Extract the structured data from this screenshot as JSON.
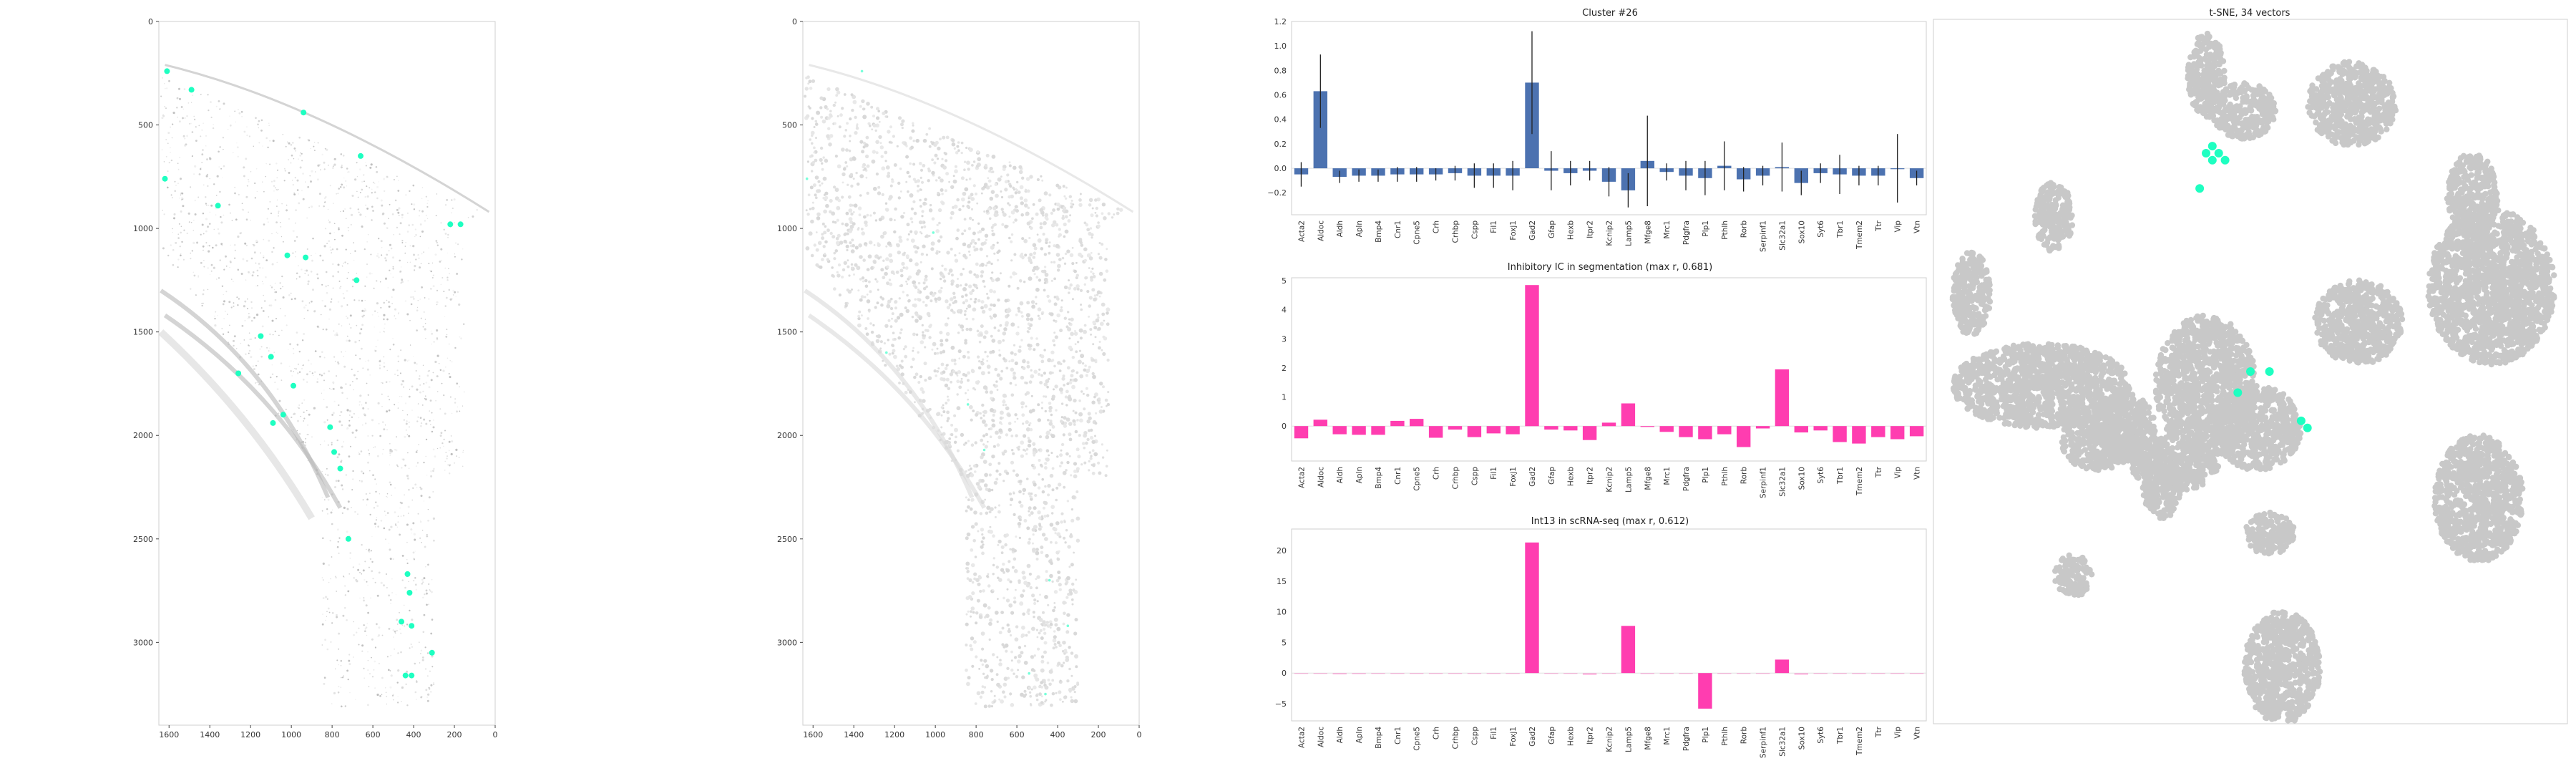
{
  "genes": [
    "Acta2",
    "Aldoc",
    "Aldh",
    "Apln",
    "Bmp4",
    "Cnr1",
    "Cpne5",
    "Crh",
    "Crhbp",
    "Cspp",
    "Fil1",
    "Foxj1",
    "Gad2",
    "Gfap",
    "Hexb",
    "Itpr2",
    "Kcnip2",
    "Lamp5",
    "Mfge8",
    "Mrc1",
    "Pdgfra",
    "Plp1",
    "Pthlh",
    "Rorb",
    "Serpinf1",
    "Slc32a1",
    "Sox10",
    "Syt6",
    "Tbr1",
    "Tmem2",
    "Ttr",
    "Vip",
    "Vtn"
  ],
  "accent_color": "#1effc1",
  "bar_color_blue": "#4c72b0",
  "bar_color_pink": "#ff3db0",
  "point_gray": "#c8c8c8",
  "chart_data": [
    {
      "id": "tissue_spots",
      "type": "scatter",
      "xlim": [
        1650,
        0
      ],
      "ylim": [
        3400,
        0
      ],
      "x_ticks": [
        1600,
        1400,
        1200,
        1000,
        800,
        600,
        400,
        200,
        0
      ],
      "y_ticks": [
        0,
        500,
        1000,
        1500,
        2000,
        2500,
        3000
      ],
      "x_tick_labels": [
        "1600",
        "1400",
        "1200",
        "1000",
        "800",
        "600",
        "400",
        "200",
        "0"
      ],
      "y_tick_labels": [
        "0",
        "500",
        "1000",
        "1500",
        "2000",
        "2500",
        "3000"
      ],
      "points": [
        [
          1610,
          240
        ],
        [
          1490,
          330
        ],
        [
          1620,
          760
        ],
        [
          1360,
          890
        ],
        [
          940,
          440
        ],
        [
          660,
          650
        ],
        [
          1020,
          1130
        ],
        [
          930,
          1140
        ],
        [
          680,
          1250
        ],
        [
          1150,
          1520
        ],
        [
          1100,
          1620
        ],
        [
          1260,
          1700
        ],
        [
          990,
          1760
        ],
        [
          1040,
          1900
        ],
        [
          1090,
          1940
        ],
        [
          810,
          1960
        ],
        [
          790,
          2080
        ],
        [
          760,
          2160
        ],
        [
          720,
          2500
        ],
        [
          430,
          2670
        ],
        [
          420,
          2760
        ],
        [
          460,
          2900
        ],
        [
          410,
          2920
        ],
        [
          310,
          3050
        ],
        [
          440,
          3160
        ],
        [
          410,
          3160
        ],
        [
          220,
          980
        ],
        [
          170,
          980
        ]
      ]
    },
    {
      "id": "tissue_segmentation",
      "type": "scatter",
      "xlim": [
        1650,
        0
      ],
      "ylim": [
        3400,
        0
      ],
      "x_ticks": [
        1600,
        1400,
        1200,
        1000,
        800,
        600,
        400,
        200,
        0
      ],
      "y_ticks": [
        0,
        500,
        1000,
        1500,
        2000,
        2500,
        3000
      ],
      "x_tick_labels": [
        "1600",
        "1400",
        "1200",
        "1000",
        "800",
        "600",
        "400",
        "200",
        "0"
      ],
      "y_tick_labels": [
        "0",
        "500",
        "1000",
        "1500",
        "2000",
        "2500",
        "3000"
      ],
      "points": [
        [
          1360,
          240
        ],
        [
          1630,
          760
        ],
        [
          1010,
          1020
        ],
        [
          1240,
          1600
        ],
        [
          840,
          1850
        ],
        [
          760,
          2070
        ],
        [
          440,
          2700
        ],
        [
          350,
          2920
        ],
        [
          540,
          3150
        ],
        [
          460,
          3250
        ]
      ]
    },
    {
      "id": "cluster26",
      "type": "bar",
      "title": "Cluster #26",
      "categories": [
        "Acta2",
        "Aldoc",
        "Aldh",
        "Apln",
        "Bmp4",
        "Cnr1",
        "Cpne5",
        "Crh",
        "Crhbp",
        "Cspp",
        "Fil1",
        "Foxj1",
        "Gad2",
        "Gfap",
        "Hexb",
        "Itpr2",
        "Kcnip2",
        "Lamp5",
        "Mfge8",
        "Mrc1",
        "Pdgfra",
        "Plp1",
        "Pthlh",
        "Rorb",
        "Serpinf1",
        "Slc32a1",
        "Sox10",
        "Syt6",
        "Tbr1",
        "Tmem2",
        "Ttr",
        "Vip",
        "Vtn"
      ],
      "values": [
        -0.05,
        0.63,
        -0.07,
        -0.06,
        -0.06,
        -0.05,
        -0.05,
        -0.05,
        -0.04,
        -0.06,
        -0.06,
        -0.06,
        0.7,
        -0.02,
        -0.04,
        -0.02,
        -0.11,
        -0.18,
        0.06,
        -0.03,
        -0.06,
        -0.08,
        0.02,
        -0.09,
        -0.06,
        0.01,
        -0.12,
        -0.04,
        -0.05,
        -0.06,
        -0.06,
        0.0,
        -0.08
      ],
      "errors": [
        0.1,
        0.3,
        0.05,
        0.05,
        0.05,
        0.06,
        0.06,
        0.05,
        0.06,
        0.1,
        0.1,
        0.12,
        0.42,
        0.16,
        0.1,
        0.08,
        0.12,
        0.14,
        0.37,
        0.07,
        0.12,
        0.14,
        0.2,
        0.1,
        0.08,
        0.2,
        0.1,
        0.08,
        0.16,
        0.08,
        0.08,
        0.28,
        0.06
      ],
      "ylim": [
        -0.38,
        1.2
      ],
      "y_ticks": [
        -0.2,
        0.0,
        0.2,
        0.4,
        0.6,
        0.8,
        1.0,
        1.2
      ],
      "y_tick_labels": [
        "−0.2",
        "0.0",
        "0.2",
        "0.4",
        "0.6",
        "0.8",
        "1.0",
        "1.2"
      ]
    },
    {
      "id": "inhibitory",
      "type": "bar",
      "title": "Inhibitory IC in segmentation (max r, 0.681)",
      "categories": [
        "Acta2",
        "Aldoc",
        "Aldh",
        "Apln",
        "Bmp4",
        "Cnr1",
        "Cpne5",
        "Crh",
        "Crhbp",
        "Cspp",
        "Fil1",
        "Foxj1",
        "Gad2",
        "Gfap",
        "Hexb",
        "Itpr2",
        "Kcnip2",
        "Lamp5",
        "Mfge8",
        "Mrc1",
        "Pdgfra",
        "Plp1",
        "Pthlh",
        "Rorb",
        "Serpinf1",
        "Slc32a1",
        "Sox10",
        "Syt6",
        "Tbr1",
        "Tmem2",
        "Ttr",
        "Vip",
        "Vtn"
      ],
      "values": [
        -0.42,
        0.22,
        -0.28,
        -0.3,
        -0.3,
        0.18,
        0.25,
        -0.4,
        -0.12,
        -0.38,
        -0.25,
        -0.28,
        4.85,
        -0.12,
        -0.15,
        -0.48,
        0.12,
        0.78,
        -0.02,
        -0.2,
        -0.38,
        -0.45,
        -0.28,
        -0.72,
        -0.08,
        1.95,
        -0.22,
        -0.15,
        -0.55,
        -0.6,
        -0.38,
        -0.45,
        -0.35
      ],
      "ylim": [
        -1.2,
        5.1
      ],
      "y_ticks": [
        0,
        1,
        2,
        3,
        4,
        5
      ],
      "y_tick_labels": [
        "0",
        "1",
        "2",
        "3",
        "4",
        "5"
      ]
    },
    {
      "id": "int13",
      "type": "bar",
      "title": "Int13 in scRNA-seq (max r, 0.612)",
      "categories": [
        "Acta2",
        "Aldoc",
        "Aldh",
        "Apln",
        "Bmp4",
        "Cnr1",
        "Cpne5",
        "Crh",
        "Crhbp",
        "Cspp",
        "Fil1",
        "Foxj1",
        "Gad2",
        "Gfap",
        "Hexb",
        "Itpr2",
        "Kcnip2",
        "Lamp5",
        "Mfge8",
        "Mrc1",
        "Pdgfra",
        "Plp1",
        "Pthlh",
        "Rorb",
        "Serpinf1",
        "Slc32a1",
        "Sox10",
        "Syt6",
        "Tbr1",
        "Tmem2",
        "Ttr",
        "Vip",
        "Vtn"
      ],
      "values": [
        0.0,
        -0.08,
        -0.22,
        -0.18,
        -0.1,
        0.0,
        0.0,
        0.0,
        0.0,
        0.0,
        -0.12,
        -0.1,
        21.3,
        0.0,
        -0.1,
        -0.3,
        0.0,
        7.7,
        -0.15,
        0.0,
        -0.1,
        -5.8,
        0.0,
        -0.12,
        0.0,
        2.2,
        -0.28,
        0.0,
        -0.12,
        -0.15,
        0.0,
        -0.1,
        -0.1
      ],
      "ylim": [
        -7.8,
        23.5
      ],
      "y_ticks": [
        -5,
        0,
        5,
        10,
        15,
        20
      ],
      "y_tick_labels": [
        "−5",
        "0",
        "5",
        "10",
        "15",
        "20"
      ]
    },
    {
      "id": "tsne",
      "type": "scatter",
      "title": "t-SNE, 34 vectors",
      "xlim": [
        0,
        100
      ],
      "ylim": [
        0,
        100
      ],
      "clusters": [
        [
          43,
          8,
          3,
          6
        ],
        [
          49,
          13,
          5,
          4
        ],
        [
          66,
          12,
          7,
          6
        ],
        [
          19,
          28,
          3,
          5
        ],
        [
          85,
          25,
          4,
          6
        ],
        [
          88,
          38,
          10,
          11
        ],
        [
          67,
          43,
          7,
          6
        ],
        [
          6,
          39,
          3,
          6
        ],
        [
          17,
          52,
          14,
          6
        ],
        [
          43,
          52,
          8,
          10
        ],
        [
          51,
          58,
          7,
          6
        ],
        [
          26,
          60,
          6,
          4
        ],
        [
          38,
          63,
          7,
          4
        ],
        [
          86,
          68,
          7,
          9
        ],
        [
          53,
          73,
          4,
          3
        ],
        [
          22,
          79,
          3,
          3
        ],
        [
          55,
          92,
          6,
          8
        ],
        [
          36,
          66,
          3,
          5
        ],
        [
          30,
          58,
          5,
          5
        ]
      ],
      "highlights": [
        [
          44,
          18
        ],
        [
          45,
          19
        ],
        [
          43,
          19
        ],
        [
          46,
          20
        ],
        [
          44,
          20
        ],
        [
          42,
          24
        ],
        [
          50,
          50
        ],
        [
          53,
          50
        ],
        [
          48,
          53
        ],
        [
          58,
          57
        ],
        [
          59,
          58
        ]
      ]
    }
  ]
}
